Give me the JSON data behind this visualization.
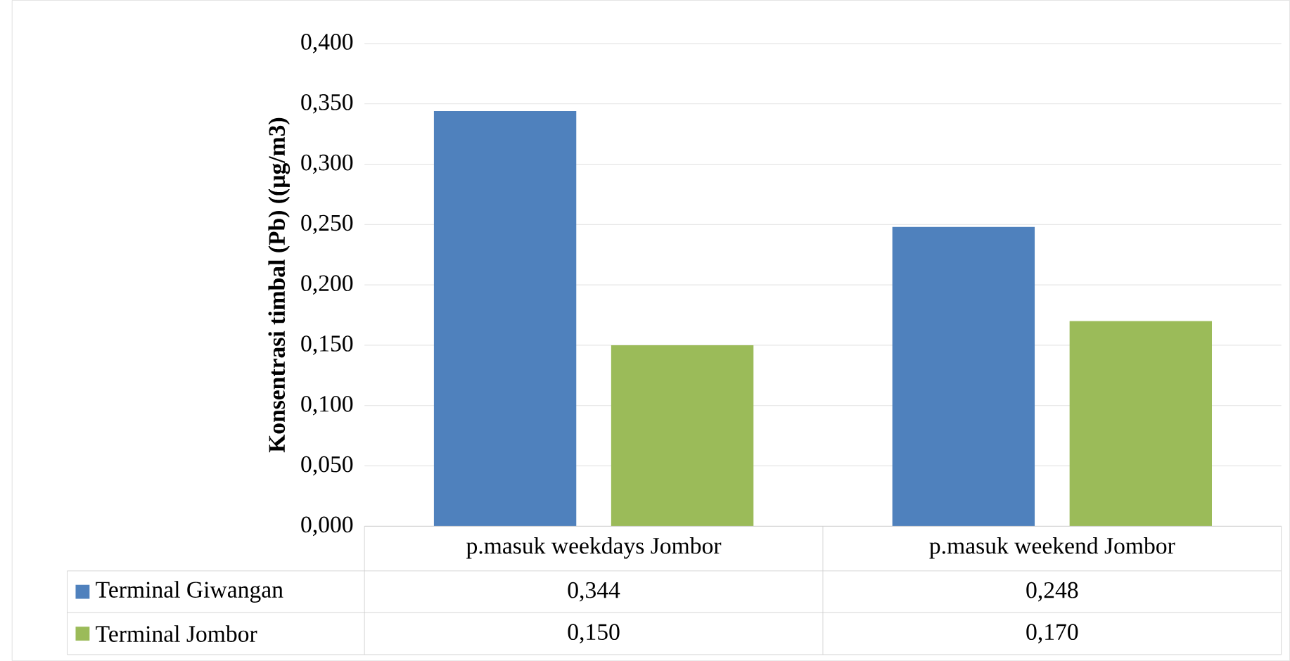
{
  "chart_data": {
    "type": "bar",
    "ylabel": "Konsentrasi timbal (Pb) ((µg/m3)",
    "categories": [
      "p.masuk weekdays Jombor",
      "p.masuk weekend Jombor"
    ],
    "series": [
      {
        "name": "Terminal Giwangan",
        "color": "#4f81bd",
        "values": [
          0.344,
          0.248
        ],
        "value_labels": [
          "0,344",
          "0,248"
        ]
      },
      {
        "name": "Terminal Jombor",
        "color": "#9bbb59",
        "values": [
          0.15,
          0.17
        ],
        "value_labels": [
          "0,150",
          "0,170"
        ]
      }
    ],
    "ylim": [
      0,
      0.4
    ],
    "yticks": [
      {
        "value": 0,
        "label": "0,000"
      },
      {
        "value": 0.05,
        "label": "0,050"
      },
      {
        "value": 0.1,
        "label": "0,100"
      },
      {
        "value": 0.15,
        "label": "0,150"
      },
      {
        "value": 0.2,
        "label": "0,200"
      },
      {
        "value": 0.25,
        "label": "0,250"
      },
      {
        "value": 0.3,
        "label": "0,300"
      },
      {
        "value": 0.35,
        "label": "0,350"
      },
      {
        "value": 0.4,
        "label": "0,400"
      }
    ],
    "grid": "y",
    "legend": "bottom left"
  }
}
